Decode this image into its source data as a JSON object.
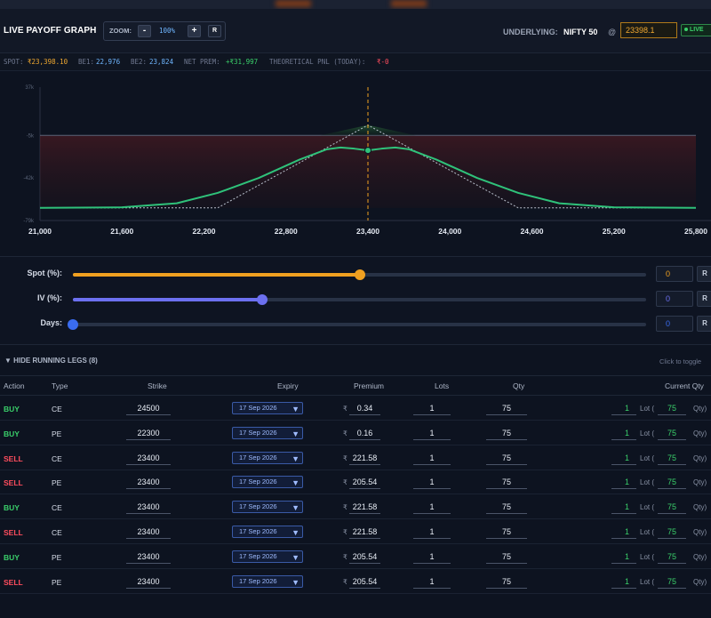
{
  "header": {
    "title": "LIVE PAYOFF GRAPH",
    "zoom_label": "ZOOM:",
    "zoom_minus": "-",
    "zoom_value": "100%",
    "zoom_plus": "+",
    "zoom_reset": "R",
    "underlying_label": "UNDERLYING:",
    "underlying_name": "NIFTY 50",
    "at": "@",
    "underlying_value": "23398.1",
    "live_badge": "LIVE"
  },
  "stats": {
    "spot_label": "SPOT:",
    "spot_value": "₹23,398.10",
    "be1_label": "BE1:",
    "be1_value": "22,976",
    "be2_label": "BE2:",
    "be2_value": "23,824",
    "net_prem_label": "NET PREM:",
    "net_prem_value": "+₹31,997",
    "pnl_label": "THEORETICAL PNL (TODAY):",
    "pnl_value": "₹-0"
  },
  "chart_data": {
    "type": "line",
    "x_ticks": [
      "21,000",
      "21,600",
      "22,200",
      "22,800",
      "23,400",
      "24,000",
      "24,600",
      "25,200",
      "25,800"
    ],
    "y_ticks": [
      "37k",
      "-5k",
      "-42k",
      "-79k"
    ],
    "xlim": [
      21000,
      25800
    ],
    "ylim": [
      -79000,
      37000
    ],
    "spot_marker": 23400,
    "series": [
      {
        "style": "dashed-gray",
        "x": [
          21000,
          22200,
          22300,
          23400,
          24500,
          24600,
          25800
        ],
        "y": [
          -68000,
          -68000,
          -68000,
          4000,
          -68000,
          -68000,
          -68000
        ]
      },
      {
        "style": "green",
        "x": [
          21000,
          21600,
          22000,
          22300,
          22600,
          22900,
          23100,
          23200,
          23300,
          23400,
          23500,
          23600,
          23700,
          23900,
          24200,
          24500,
          24800,
          25200,
          25800
        ],
        "y": [
          -68000,
          -67500,
          -64000,
          -55000,
          -42000,
          -26000,
          -17000,
          -15500,
          -16500,
          -18000,
          -16500,
          -15500,
          -17000,
          -26000,
          -42000,
          -55000,
          -64000,
          -67500,
          -68000
        ]
      }
    ]
  },
  "sliders": [
    {
      "label": "Spot (%):",
      "value": "0",
      "reset": "R",
      "fraction": 0.5,
      "color": "#f0a020"
    },
    {
      "label": "IV (%):",
      "value": "0",
      "reset": "R",
      "fraction": 0.33,
      "color": "#6c70f0"
    },
    {
      "label": "Days:",
      "value": "0",
      "reset": "R",
      "fraction": 0.0,
      "color": "#3a6cf0"
    }
  ],
  "legs": {
    "toggle": "▼ HIDE RUNNING LEGS (8)",
    "click_hint": "Click to toggle",
    "columns": [
      "Action",
      "Type",
      "Strike",
      "Expiry",
      "Premium",
      "Lots",
      "Qty",
      "Current Qty"
    ],
    "rupee": "₹",
    "lot_label": "Lot (",
    "qty_label": "Qty)",
    "rows": [
      {
        "action": "BUY",
        "type": "CE",
        "strike": "24500",
        "expiry": "17 Sep 2026",
        "premium": "0.34",
        "lots": "1",
        "qty": "75",
        "cur_lots": "1",
        "cur_qty": "75"
      },
      {
        "action": "BUY",
        "type": "PE",
        "strike": "22300",
        "expiry": "17 Sep 2026",
        "premium": "0.16",
        "lots": "1",
        "qty": "75",
        "cur_lots": "1",
        "cur_qty": "75"
      },
      {
        "action": "SELL",
        "type": "CE",
        "strike": "23400",
        "expiry": "17 Sep 2026",
        "premium": "221.58",
        "lots": "1",
        "qty": "75",
        "cur_lots": "1",
        "cur_qty": "75"
      },
      {
        "action": "SELL",
        "type": "PE",
        "strike": "23400",
        "expiry": "17 Sep 2026",
        "premium": "205.54",
        "lots": "1",
        "qty": "75",
        "cur_lots": "1",
        "cur_qty": "75"
      },
      {
        "action": "BUY",
        "type": "CE",
        "strike": "23400",
        "expiry": "17 Sep 2026",
        "premium": "221.58",
        "lots": "1",
        "qty": "75",
        "cur_lots": "1",
        "cur_qty": "75"
      },
      {
        "action": "SELL",
        "type": "CE",
        "strike": "23400",
        "expiry": "17 Sep 2026",
        "premium": "221.58",
        "lots": "1",
        "qty": "75",
        "cur_lots": "1",
        "cur_qty": "75"
      },
      {
        "action": "BUY",
        "type": "PE",
        "strike": "23400",
        "expiry": "17 Sep 2026",
        "premium": "205.54",
        "lots": "1",
        "qty": "75",
        "cur_lots": "1",
        "cur_qty": "75"
      },
      {
        "action": "SELL",
        "type": "PE",
        "strike": "23400",
        "expiry": "17 Sep 2026",
        "premium": "205.54",
        "lots": "1",
        "qty": "75",
        "cur_lots": "1",
        "cur_qty": "75"
      }
    ]
  }
}
